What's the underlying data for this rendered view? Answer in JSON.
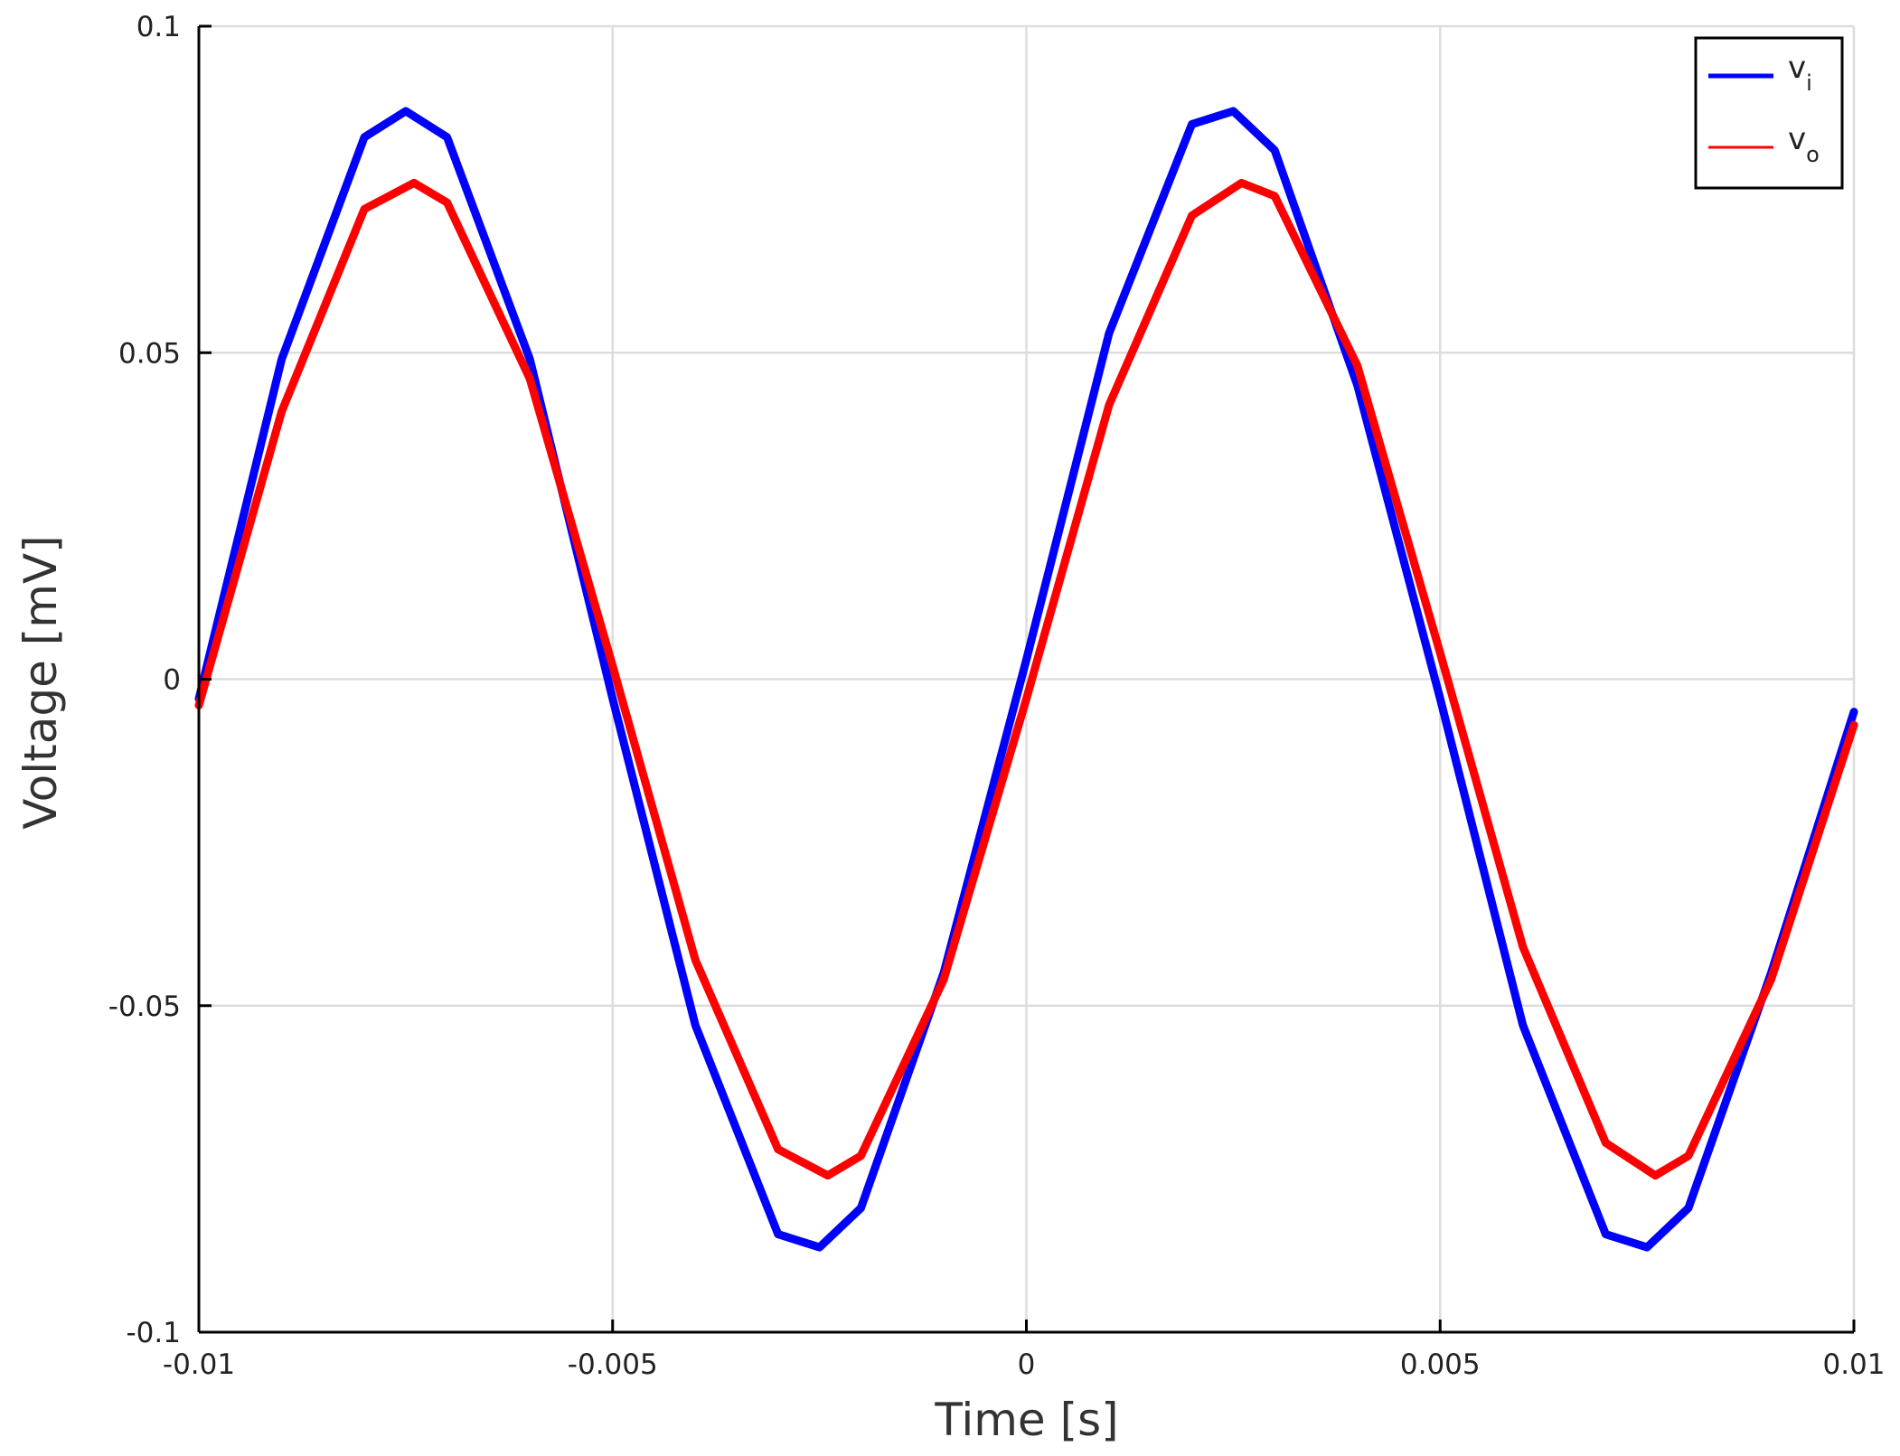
{
  "chart_data": {
    "type": "line",
    "xlabel": "Time [s]",
    "ylabel": "Voltage [mV]",
    "xlim": [
      -0.01,
      0.01
    ],
    "ylim": [
      -0.1,
      0.1
    ],
    "x_ticks": [
      -0.01,
      -0.005,
      0,
      0.005,
      0.01
    ],
    "x_tick_labels": [
      "-0.01",
      "-0.005",
      "0",
      "0.005",
      "0.01"
    ],
    "y_ticks": [
      -0.1,
      -0.05,
      0,
      0.05,
      0.1
    ],
    "y_tick_labels": [
      "-0.1",
      "-0.05",
      "0",
      "0.05",
      "0.1"
    ],
    "grid": true,
    "legend_position": "top-right",
    "series": [
      {
        "name": "v",
        "subscript": "i",
        "color": "#0000ff",
        "x": [
          -0.01,
          -0.009,
          -0.008,
          -0.0075,
          -0.007,
          -0.006,
          -0.005,
          -0.004,
          -0.003,
          -0.0025,
          -0.002,
          -0.001,
          0,
          0.001,
          0.002,
          0.0025,
          0.003,
          0.004,
          0.005,
          0.006,
          0.007,
          0.0075,
          0.008,
          0.009,
          0.01
        ],
        "y": [
          -0.003,
          0.049,
          0.083,
          0.087,
          0.083,
          0.049,
          -0.003,
          -0.053,
          -0.085,
          -0.087,
          -0.081,
          -0.045,
          0.003,
          0.053,
          0.085,
          0.087,
          0.081,
          0.045,
          -0.003,
          -0.053,
          -0.085,
          -0.087,
          -0.081,
          -0.045,
          -0.005
        ]
      },
      {
        "name": "v",
        "subscript": "o",
        "color": "#ff0000",
        "x": [
          -0.01,
          -0.009,
          -0.008,
          -0.0074,
          -0.007,
          -0.006,
          -0.005,
          -0.004,
          -0.003,
          -0.0024,
          -0.002,
          -0.001,
          0,
          0.001,
          0.002,
          0.0026,
          0.003,
          0.004,
          0.005,
          0.006,
          0.007,
          0.0076,
          0.008,
          0.009,
          0.01
        ],
        "y": [
          -0.004,
          0.041,
          0.072,
          0.076,
          0.073,
          0.046,
          0.002,
          -0.043,
          -0.072,
          -0.076,
          -0.073,
          -0.046,
          -0.003,
          0.042,
          0.071,
          0.076,
          0.074,
          0.048,
          0.004,
          -0.041,
          -0.071,
          -0.076,
          -0.073,
          -0.046,
          -0.007
        ]
      }
    ]
  }
}
